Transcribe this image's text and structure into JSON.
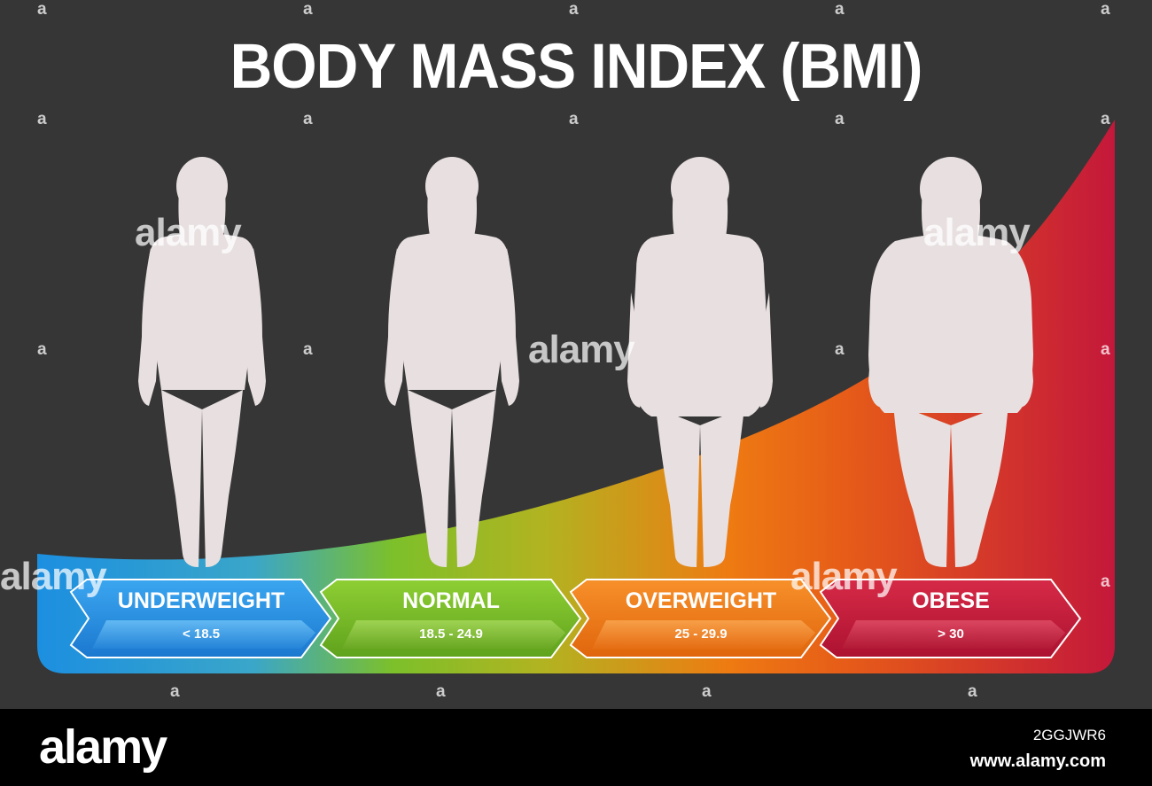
{
  "title": "BODY MASS INDEX (BMI)",
  "colors": {
    "background": "#363636",
    "underweight": "#2a8ee0",
    "normal": "#7cc02a",
    "overweight": "#ee7b12",
    "obese": "#c4183a",
    "silhouette": "#e8e0e0"
  },
  "categories": [
    {
      "name": "UNDERWEIGHT",
      "range": "< 18.5",
      "icon": "female-silhouette-slim-icon"
    },
    {
      "name": "NORMAL",
      "range": "18.5 - 24.9",
      "icon": "female-silhouette-normal-icon"
    },
    {
      "name": "OVERWEIGHT",
      "range": "25 - 29.9",
      "icon": "female-silhouette-overweight-icon"
    },
    {
      "name": "OBESE",
      "range": "> 30",
      "icon": "female-silhouette-obese-icon"
    }
  ],
  "watermark": {
    "mark": "a",
    "word": "alamy"
  },
  "footer": {
    "logo": "alamy",
    "image_id": "2GGJWR6",
    "url": "www.alamy.com"
  }
}
